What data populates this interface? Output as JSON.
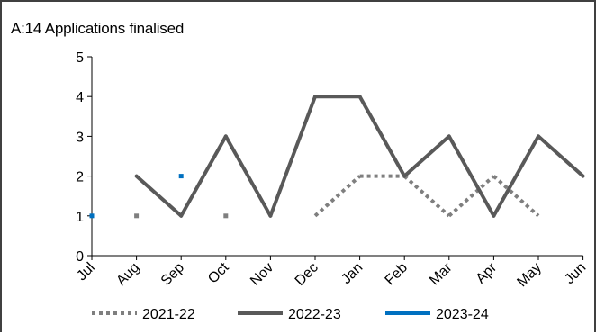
{
  "chart_data": {
    "type": "line",
    "title": "A:14 Applications finalised",
    "categories": [
      "Jul",
      "Aug",
      "Sep",
      "Oct",
      "Nov",
      "Dec",
      "Jan",
      "Feb",
      "Mar",
      "Apr",
      "May",
      "Jun"
    ],
    "ylim": [
      0,
      5
    ],
    "yticks": [
      0,
      1,
      2,
      3,
      4,
      5
    ],
    "grid": false,
    "legend_position": "bottom",
    "series": [
      {
        "name": "2021-22",
        "color": "#7f7f7f",
        "style": "dotted",
        "values": [
          null,
          1,
          null,
          1,
          null,
          1,
          2,
          2,
          1,
          2,
          1,
          null
        ]
      },
      {
        "name": "2022-23",
        "color": "#595959",
        "style": "solid",
        "values": [
          null,
          2,
          1,
          3,
          1,
          4,
          4,
          2,
          3,
          1,
          3,
          2
        ]
      },
      {
        "name": "2023-24",
        "color": "#0070c0",
        "style": "solid",
        "values": [
          1,
          null,
          2,
          null,
          null,
          null,
          null,
          null,
          null,
          null,
          null,
          null
        ]
      }
    ]
  }
}
